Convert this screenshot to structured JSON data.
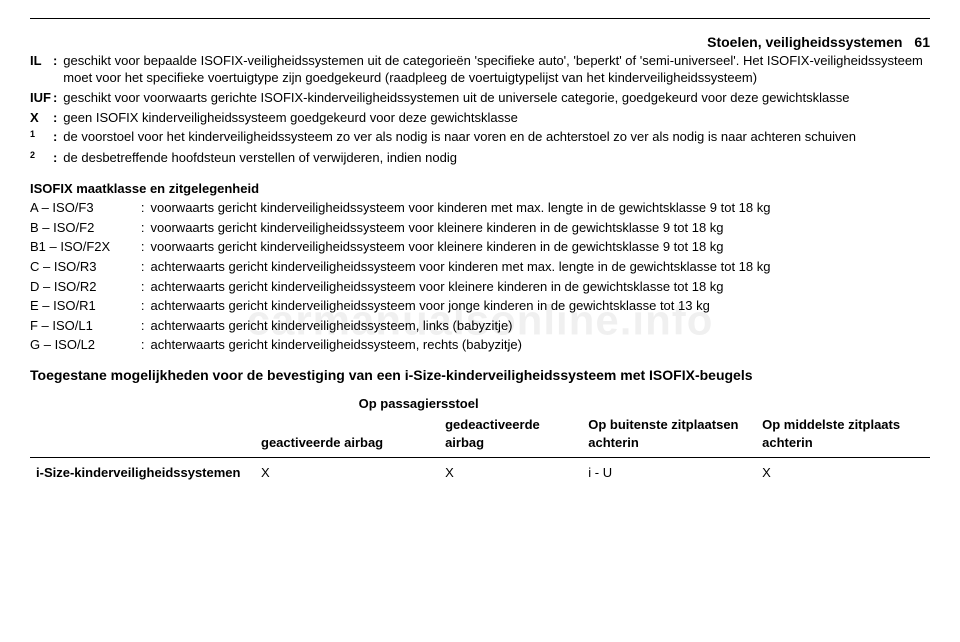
{
  "colors": {
    "text": "#000000",
    "bg": "#ffffff",
    "rule": "#000000",
    "watermark": "rgba(0,0,0,0.06)"
  },
  "header": {
    "chapter": "Stoelen, veiligheidssystemen",
    "page": "61"
  },
  "defs": [
    {
      "key": "IL",
      "text": "geschikt voor bepaalde ISOFIX-veiligheidssystemen uit de categorieën 'specifieke auto', 'beperkt' of 'semi-universeel'. Het ISOFIX-veiligheidssysteem moet voor het specifieke voertuigtype zijn goedgekeurd (raadpleeg de voertuigtypelijst van het kinderveiligheidssysteem)"
    },
    {
      "key": "IUF",
      "text": "geschikt voor voorwaarts gerichte ISOFIX-kinderveiligheidssystemen uit de universele categorie, goedgekeurd voor deze gewichtsklasse"
    },
    {
      "key": "X",
      "text": "geen ISOFIX kinderveiligheidssysteem goedgekeurd voor deze gewichtsklasse"
    },
    {
      "key": "1",
      "sup": true,
      "text": "de voorstoel voor het kinderveiligheidssysteem zo ver als nodig is naar voren en de achterstoel zo ver als nodig is naar achteren schuiven"
    },
    {
      "key": "2",
      "sup": true,
      "text": "de desbetreffende hoofdsteun verstellen of verwijderen, indien nodig"
    }
  ],
  "sizeTitle": "ISOFIX maatklasse en zitgelegenheid",
  "sizes": [
    {
      "key": "A – ISO/F3",
      "text": "voorwaarts gericht kinderveiligheidssysteem voor kinderen met max. lengte in de gewichtsklasse 9 tot 18 kg"
    },
    {
      "key": "B – ISO/F2",
      "text": "voorwaarts gericht kinderveiligheidssysteem voor kleinere kinderen in de gewichtsklasse 9 tot 18 kg"
    },
    {
      "key": "B1 – ISO/F2X",
      "text": "voorwaarts gericht kinderveiligheidssysteem voor kleinere kinderen in de gewichtsklasse 9 tot 18 kg"
    },
    {
      "key": "C – ISO/R3",
      "text": "achterwaarts gericht kinderveiligheidssysteem voor kinderen met max. lengte in de gewichtsklasse tot 18 kg"
    },
    {
      "key": "D – ISO/R2",
      "text": "achterwaarts gericht kinderveiligheidssysteem voor kleinere kinderen in de gewichtsklasse tot 18 kg"
    },
    {
      "key": "E – ISO/R1",
      "text": "achterwaarts gericht kinderveiligheidssysteem voor jonge kinderen in de gewichtsklasse tot 13 kg"
    },
    {
      "key": "F – ISO/L1",
      "text": "achterwaarts gericht kinderveiligheidssysteem, links (babyzitje)"
    },
    {
      "key": "G – ISO/L2",
      "text": "achterwaarts gericht kinderveiligheidssysteem, rechts (babyzitje)"
    }
  ],
  "mainHeading": "Toegestane mogelijkheden voor de bevestiging van een i-Size-kinderveiligheidssysteem met ISOFIX-beugels",
  "seatTable": {
    "groupHeader": "Op passagiersstoel",
    "cols": {
      "pass_active": "geactiveerde airbag",
      "pass_deactive": "gedeactiveerde airbag",
      "rear_outer": "Op buitenste zitplaatsen achterin",
      "rear_middle": "Op middelste zitplaats achterin"
    },
    "row": {
      "label": "i-Size-kinderveiligheidssystemen",
      "pass_active": "X",
      "pass_deactive": "X",
      "rear_outer": "i - U",
      "rear_middle": "X"
    }
  },
  "watermark": "carmanualsonline.info"
}
